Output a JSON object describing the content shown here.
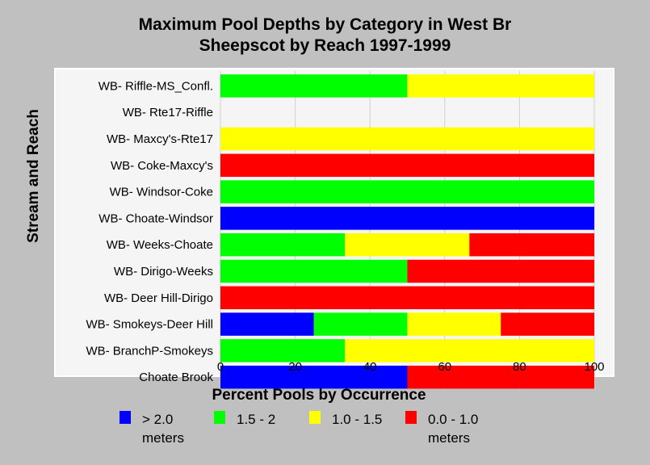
{
  "chart_data": {
    "type": "bar",
    "orientation": "horizontal",
    "stacked": true,
    "title": "Maximum Pool Depths by Category in West Br Sheepscot by Reach 1997-1999",
    "title_lines": [
      "Maximum Pool Depths by Category in West Br",
      "Sheepscot by Reach 1997-1999"
    ],
    "xlabel": "Percent Pools by Occurrence",
    "ylabel": "Stream and Reach",
    "xlim": [
      0,
      100
    ],
    "xticks": [
      0,
      20,
      40,
      60,
      80,
      100
    ],
    "grid": true,
    "legend_position": "bottom",
    "categories": [
      "WB- Riffle-MS_Confl.",
      "WB- Rte17-Riffle",
      "WB- Maxcy's-Rte17",
      "WB- Coke-Maxcy's",
      "WB- Windsor-Coke",
      "WB- Choate-Windsor",
      "WB- Weeks-Choate",
      "WB- Dirigo-Weeks",
      "WB- Deer Hill-Dirigo",
      "WB- Smokeys-Deer Hill",
      "WB- BranchP-Smokeys",
      "Choate Brook"
    ],
    "series": [
      {
        "name": "> 2.0 meters",
        "label_lines": [
          "> 2.0",
          "meters"
        ],
        "color": "#0000ff",
        "values": [
          0,
          0,
          0,
          0,
          0,
          100,
          0,
          0,
          0,
          25,
          0,
          50
        ]
      },
      {
        "name": "1.5 - 2",
        "label_lines": [
          "1.5 - 2"
        ],
        "color": "#00ff00",
        "values": [
          50,
          0,
          0,
          0,
          100,
          0,
          33.3,
          50,
          0,
          25,
          33.3,
          0
        ]
      },
      {
        "name": "1.0 - 1.5",
        "label_lines": [
          "1.0 - 1.5"
        ],
        "color": "#ffff00",
        "values": [
          50,
          0,
          100,
          0,
          0,
          0,
          33.3,
          0,
          0,
          25,
          66.7,
          0
        ]
      },
      {
        "name": "0.0 - 1.0 meters",
        "label_lines": [
          "0.0 - 1.0",
          "meters"
        ],
        "color": "#ff0000",
        "values": [
          0,
          0,
          0,
          100,
          0,
          0,
          33.4,
          50,
          100,
          25,
          0,
          50
        ]
      }
    ]
  },
  "colors": {
    "background": "#c0c0c0",
    "plot_background": "#f5f5f5",
    "gridline": "#d0d0d0"
  }
}
